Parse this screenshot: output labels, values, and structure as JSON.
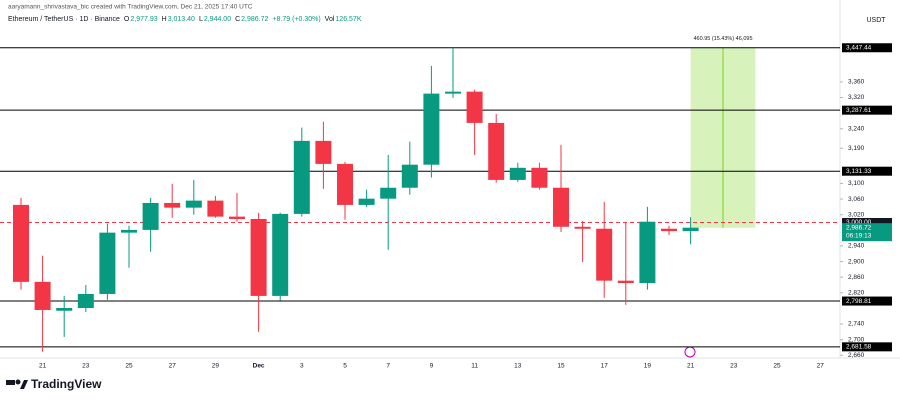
{
  "chart_data": {
    "type": "candlestick",
    "credit": "aaryamann_shrivastava_bic created with TradingView.com, Dec 21, 2025 17:40 UTC",
    "title": "Ethereum / TetherUS · 1D · Binance",
    "legend_items": [
      {
        "key": "O",
        "value": "2,977.93"
      },
      {
        "key": "H",
        "value": "3,013.40"
      },
      {
        "key": "L",
        "value": "2,944.00"
      },
      {
        "key": "C",
        "value": "2,986.72"
      },
      {
        "key": "",
        "value": "+8.79 (+0.30%)"
      },
      {
        "key": "Vol",
        "value": "126.57K"
      }
    ],
    "currency": "USDT",
    "brand": "TradingView",
    "x": [
      null,
      "21",
      null,
      "23",
      null,
      "25",
      null,
      "27",
      null,
      "29",
      null,
      "Dec",
      null,
      "3",
      null,
      "5",
      null,
      "7",
      null,
      "9",
      null,
      "11",
      null,
      "13",
      null,
      "15",
      null,
      "17",
      null,
      "19",
      null,
      "21",
      null,
      "23",
      null,
      "25",
      null,
      "27"
    ],
    "open": [
      3045,
      2848,
      2774,
      2781,
      2817,
      2974,
      2981,
      3050,
      3038,
      3056,
      3015,
      3009,
      2812,
      3022,
      3209,
      3150,
      3045,
      3061,
      3089,
      3148,
      3330,
      3335,
      3255,
      3109,
      3140,
      3089,
      2989,
      2984,
      2851,
      2845,
      2984,
      2977.93,
      null,
      null,
      null,
      null,
      null,
      null
    ],
    "high": [
      3063,
      2915,
      2812,
      2840,
      2997,
      2992,
      3063,
      3099,
      3109,
      3068,
      3076,
      3025,
      3025,
      3243,
      3258,
      3155,
      3084,
      3173,
      3207,
      3401,
      3447,
      3340,
      3278,
      3153,
      3153,
      3199,
      3004,
      3053,
      2999,
      3040,
      2991,
      3013.4,
      null,
      null,
      null,
      null,
      null,
      null
    ],
    "low": [
      2828,
      2669,
      2707,
      2771,
      2802,
      2884,
      2925,
      3012,
      3020,
      3012,
      3002,
      2720,
      2800,
      3015,
      3086,
      3007,
      3040,
      2930,
      3071,
      3115,
      3319,
      3173,
      3102,
      3104,
      3084,
      2976,
      2899,
      2807,
      2789,
      2828,
      2968,
      2944.0,
      null,
      null,
      null,
      null,
      null,
      null
    ],
    "close": [
      2848,
      2776,
      2781,
      2817,
      2974,
      2981,
      3050,
      3038,
      3056,
      3015,
      3009,
      2812,
      3022,
      3209,
      3150,
      3045,
      3061,
      3089,
      3148,
      3330,
      3335,
      3255,
      3109,
      3140,
      3089,
      2989,
      2984,
      2851,
      2845,
      3002,
      2978,
      2986.72,
      null,
      null,
      null,
      null,
      null,
      null
    ],
    "up_color": "#089981",
    "down_color": "#f23645",
    "ylim": [
      2653,
      3539
    ],
    "yticks": [
      {
        "value": 3360,
        "label": "3,360"
      },
      {
        "value": 3320,
        "label": "3,320"
      },
      {
        "value": 3240,
        "label": "3,240"
      },
      {
        "value": 3190,
        "label": "3,190"
      },
      {
        "value": 3100,
        "label": "3,100"
      },
      {
        "value": 3060,
        "label": "3,060"
      },
      {
        "value": 3020,
        "label": "3,020"
      },
      {
        "value": 2940,
        "label": "2,940"
      },
      {
        "value": 2900,
        "label": "2,900"
      },
      {
        "value": 2860,
        "label": "2,860"
      },
      {
        "value": 2820,
        "label": "2,820"
      },
      {
        "value": 2740,
        "label": "2,740"
      },
      {
        "value": 2700,
        "label": "2,700"
      },
      {
        "value": 2660,
        "label": "2,660"
      }
    ],
    "levels": [
      {
        "value": 3447.44,
        "label": "3,447.44"
      },
      {
        "value": 3287.61,
        "label": "3,287.61"
      },
      {
        "value": 3131.33,
        "label": "3,131.33"
      },
      {
        "value": 2798.81,
        "label": "2,798.81"
      },
      {
        "value": 2681.58,
        "label": "2,681.58"
      }
    ],
    "dashed_level": {
      "value": 3000,
      "label": "3,000.00"
    },
    "last_price": {
      "value": 2986.72,
      "label": "2,986.72",
      "countdown": "06:19:13"
    },
    "measure": {
      "from": 2986.49,
      "to": 3447.44,
      "label": "460.95 (15.43%) 46,095"
    }
  }
}
